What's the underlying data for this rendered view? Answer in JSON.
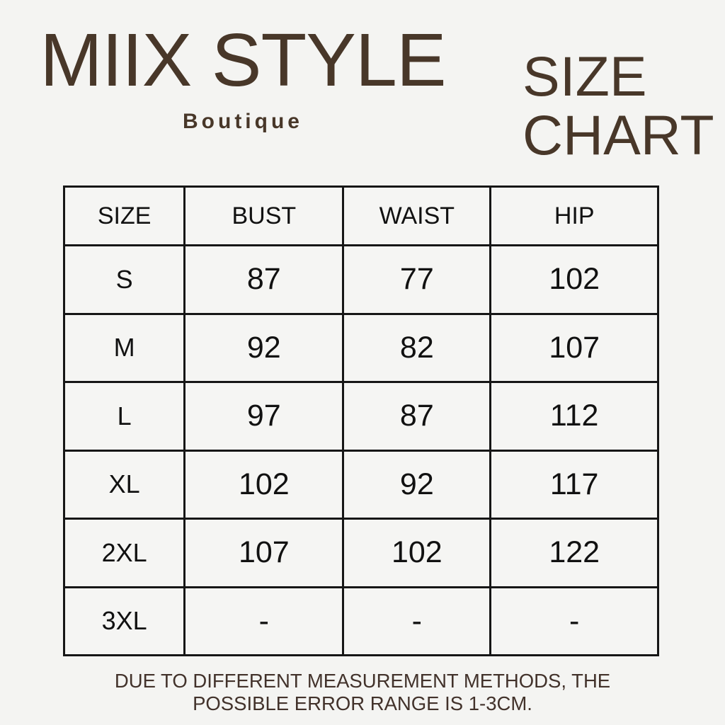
{
  "brand": {
    "name": "MIIX STYLE",
    "subtitle": "Boutique"
  },
  "heading": {
    "line1": "SIZE",
    "line2": "CHART"
  },
  "colors": {
    "background": "#f4f4f2",
    "brand_brown": "#483729",
    "table_border": "#161616",
    "table_text": "#111111"
  },
  "size_table": {
    "headers": [
      "SIZE",
      "BUST",
      "WAIST",
      "HIP"
    ],
    "rows": [
      {
        "size": "S",
        "bust": "87",
        "waist": "77",
        "hip": "102"
      },
      {
        "size": "M",
        "bust": "92",
        "waist": "82",
        "hip": "107"
      },
      {
        "size": "L",
        "bust": "97",
        "waist": "87",
        "hip": "112"
      },
      {
        "size": "XL",
        "bust": "102",
        "waist": "92",
        "hip": "117"
      },
      {
        "size": "2XL",
        "bust": "107",
        "waist": "102",
        "hip": "122"
      },
      {
        "size": "3XL",
        "bust": "-",
        "waist": "-",
        "hip": "-"
      }
    ]
  },
  "footer": {
    "line1": "DUE TO DIFFERENT MEASUREMENT METHODS, THE",
    "line2": "POSSIBLE ERROR RANGE IS 1-3CM."
  },
  "chart_data": {
    "type": "table",
    "title": "SIZE CHART",
    "columns": [
      "SIZE",
      "BUST",
      "WAIST",
      "HIP"
    ],
    "rows": [
      [
        "S",
        "87",
        "77",
        "102"
      ],
      [
        "M",
        "92",
        "82",
        "107"
      ],
      [
        "L",
        "97",
        "87",
        "112"
      ],
      [
        "XL",
        "102",
        "92",
        "117"
      ],
      [
        "2XL",
        "107",
        "102",
        "122"
      ],
      [
        "3XL",
        "-",
        "-",
        "-"
      ]
    ],
    "note": "DUE TO DIFFERENT MEASUREMENT METHODS, THE POSSIBLE ERROR RANGE IS 1-3CM."
  }
}
